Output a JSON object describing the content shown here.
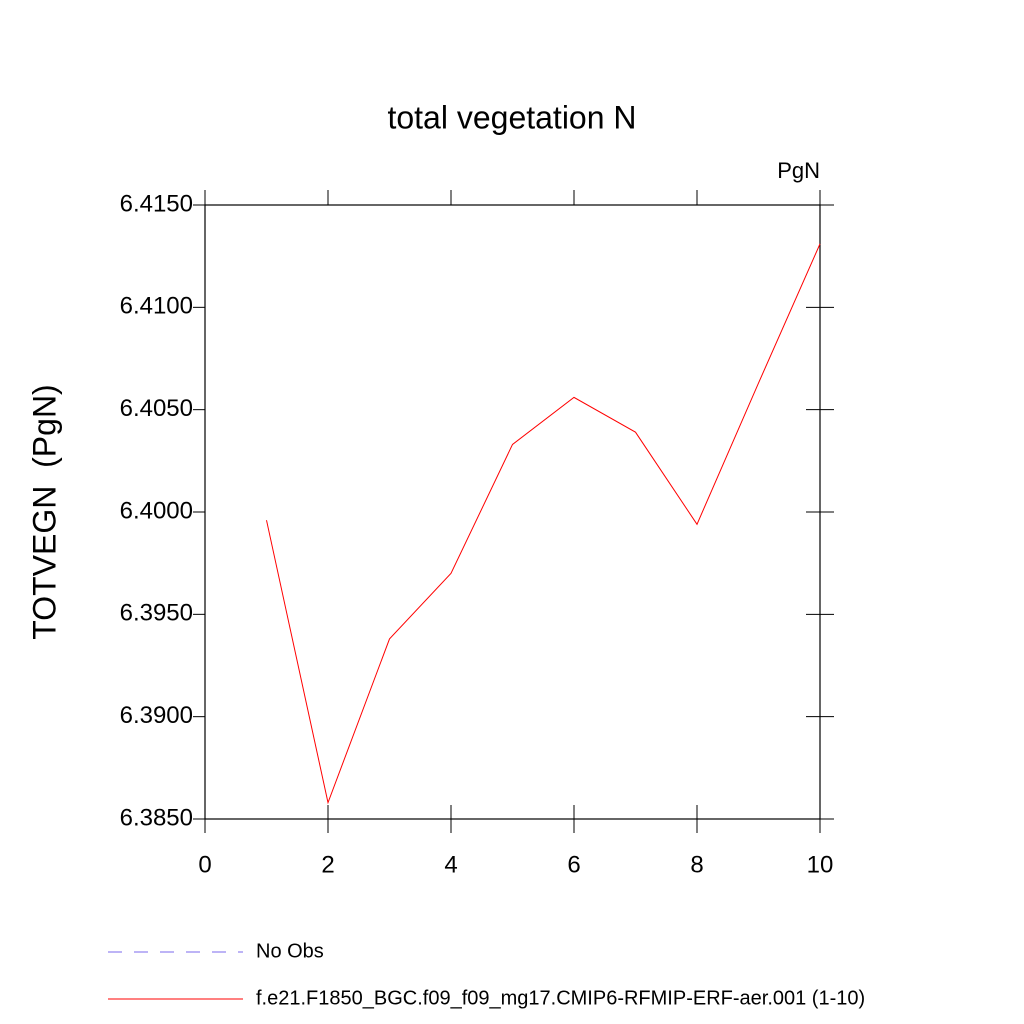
{
  "chart_data": {
    "type": "line",
    "title": "total vegetation N",
    "units": "PgN",
    "y_label": "TOTVEGN  (PgN)",
    "x": [
      1,
      2,
      3,
      4,
      5,
      6,
      7,
      8,
      9,
      10
    ],
    "series": [
      {
        "name": "No Obs",
        "color": "#7b68ee",
        "dashed": true,
        "values": [
          null,
          null,
          null,
          null,
          null,
          null,
          null,
          null,
          null,
          null
        ]
      },
      {
        "name": "f.e21.F1850_BGC.f09_f09_mg17.CMIP6-RFMIP-ERF-aer.001 (1-10)",
        "color": "#ff0000",
        "dashed": false,
        "values": [
          6.3996,
          6.3858,
          6.3938,
          6.397,
          6.4033,
          6.4056,
          6.4039,
          6.3994,
          6.4063,
          6.4131
        ]
      }
    ],
    "xlim": [
      0,
      10
    ],
    "xticks": [
      0,
      2,
      4,
      6,
      8,
      10
    ],
    "ylim": [
      6.385,
      6.415
    ],
    "yticks": [
      {
        "value": 6.385,
        "label": "6.3850"
      },
      {
        "value": 6.39,
        "label": "6.3900"
      },
      {
        "value": 6.395,
        "label": "6.3950"
      },
      {
        "value": 6.4,
        "label": "6.4000"
      },
      {
        "value": 6.405,
        "label": "6.4050"
      },
      {
        "value": 6.41,
        "label": "6.4100"
      },
      {
        "value": 6.415,
        "label": "6.4150"
      }
    ]
  }
}
